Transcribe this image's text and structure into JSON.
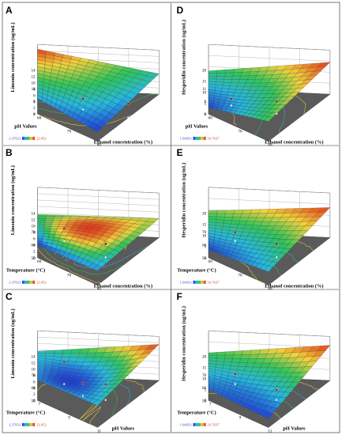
{
  "chart_data": [
    {
      "type": "surface3d",
      "panel": "A",
      "zlabel": "Limonin concentration (ug/mL)",
      "xlabel": "Ethanol concentration (%)",
      "ylabel": "pH Values",
      "x_ticks": [
        "60",
        "70",
        "80"
      ],
      "y_ticks": [
        "7",
        "9",
        "11"
      ],
      "z_ticks": [
        "0",
        "2",
        "4",
        "6",
        "8",
        "10",
        "12",
        "14"
      ],
      "zlim": [
        0,
        14
      ],
      "colorbar": {
        "min": "3.37933",
        "max": "12.052"
      },
      "corner_heights": {
        "back_left": 12.5,
        "back_right": 6.5,
        "front_left": 5.0,
        "front_right": 3.0
      },
      "bulge": 1.5,
      "design_points": [
        {
          "x": 70,
          "y": 9,
          "z": 3.5
        },
        {
          "x": 80,
          "y": 9,
          "z": 4.5
        }
      ]
    },
    {
      "type": "surface3d",
      "panel": "B",
      "zlabel": "Limonin concentration (ug/mL)",
      "xlabel": "Ethanol concentration (%)",
      "ylabel": "Temperature (°C)",
      "x_ticks": [
        "60",
        "70",
        "80"
      ],
      "y_ticks": [
        "50",
        "60",
        "70"
      ],
      "z_ticks": [
        "0",
        "2",
        "4",
        "6",
        "8",
        "10",
        "12",
        "14"
      ],
      "zlim": [
        0,
        14
      ],
      "colorbar": {
        "min": "3.37933",
        "max": "12.052"
      },
      "corner_heights": {
        "back_left": 5.5,
        "back_right": 6.0,
        "front_left": 4.0,
        "front_right": 4.5
      },
      "bulge": 3.0,
      "design_points": [
        {
          "x": 65,
          "y": 65,
          "z": 4.0
        },
        {
          "x": 75,
          "y": 60,
          "z": 4.2
        }
      ]
    },
    {
      "type": "surface3d",
      "panel": "C",
      "zlabel": "Limonin concentration (ug/mL)",
      "xlabel": "pH Values",
      "ylabel": "Temperature (°C)",
      "x_ticks": [
        "7",
        "9",
        "11"
      ],
      "y_ticks": [
        "50",
        "60",
        "70"
      ],
      "z_ticks": [
        "0",
        "2",
        "4",
        "6",
        "8",
        "10",
        "12",
        "14"
      ],
      "zlim": [
        0,
        14
      ],
      "colorbar": {
        "min": "3.37933",
        "max": "12.052"
      },
      "corner_heights": {
        "back_left": 7.5,
        "back_right": 11.5,
        "front_left": 6.5,
        "front_right": 7.0
      },
      "bulge": -3.5,
      "design_points": [
        {
          "x": 8,
          "y": 65,
          "z": 7.0
        },
        {
          "x": 9,
          "y": 60,
          "z": 4.0
        },
        {
          "x": 10,
          "y": 60,
          "z": 5.0
        }
      ]
    },
    {
      "type": "surface3d",
      "panel": "D",
      "zlabel": "Hesperidin concentration (ug/mL)",
      "xlabel": "Ethanol concentration (%)",
      "ylabel": "pH Values",
      "x_ticks": [
        "60",
        "70",
        "80"
      ],
      "y_ticks": [
        "7",
        "9",
        "11"
      ],
      "z_ticks": [
        "0",
        "5",
        "10",
        "15",
        "20"
      ],
      "zlim": [
        0,
        20
      ],
      "colorbar": {
        "min": "1.64833",
        "max": "16.7637"
      },
      "corner_heights": {
        "back_left": 8.0,
        "back_right": 14.5,
        "front_left": 3.0,
        "front_right": 9.0
      },
      "bulge": -2.5,
      "design_points": [
        {
          "x": 65,
          "y": 9,
          "z": 3.0
        },
        {
          "x": 75,
          "y": 9,
          "z": 5.5
        }
      ]
    },
    {
      "type": "surface3d",
      "panel": "E",
      "zlabel": "Hesperidin concentration (ug/mL)",
      "xlabel": "Ethanol concentration (%)",
      "ylabel": "Temperature (°C)",
      "x_ticks": [
        "60",
        "70",
        "80"
      ],
      "y_ticks": [
        "50",
        "60",
        "70"
      ],
      "z_ticks": [
        "0",
        "5",
        "10",
        "15",
        "20"
      ],
      "zlim": [
        0,
        20
      ],
      "colorbar": {
        "min": "1.64833",
        "max": "16.7637"
      },
      "corner_heights": {
        "back_left": 9.5,
        "back_right": 13.5,
        "front_left": 3.5,
        "front_right": 6.0
      },
      "bulge": -1.5,
      "design_points": [
        {
          "x": 65,
          "y": 65,
          "z": 4.0
        },
        {
          "x": 75,
          "y": 60,
          "z": 6.0
        }
      ]
    },
    {
      "type": "surface3d",
      "panel": "F",
      "zlabel": "Hesperidin concentration (ug/mL)",
      "xlabel": "pH Values",
      "ylabel": "Temperature (°C)",
      "x_ticks": [
        "7",
        "9",
        "11"
      ],
      "y_ticks": [
        "50",
        "60",
        "70"
      ],
      "z_ticks": [
        "0",
        "5",
        "10",
        "15",
        "20"
      ],
      "zlim": [
        0,
        20
      ],
      "colorbar": {
        "min": "1.64833",
        "max": "16.7637"
      },
      "corner_heights": {
        "back_left": 10.0,
        "back_right": 16.0,
        "front_left": 5.0,
        "front_right": 4.0
      },
      "bulge": -2.5,
      "design_points": [
        {
          "x": 8,
          "y": 65,
          "z": 4.5
        },
        {
          "x": 10,
          "y": 60,
          "z": 4.5
        }
      ]
    }
  ],
  "colors": {
    "low": "#1f3fd6",
    "mid_low": "#27b8e0",
    "mid": "#2fc45a",
    "mid_high": "#f2d23a",
    "high": "#e23b1b",
    "floor": "#5a5a5a",
    "point": "#8b1a1a"
  }
}
